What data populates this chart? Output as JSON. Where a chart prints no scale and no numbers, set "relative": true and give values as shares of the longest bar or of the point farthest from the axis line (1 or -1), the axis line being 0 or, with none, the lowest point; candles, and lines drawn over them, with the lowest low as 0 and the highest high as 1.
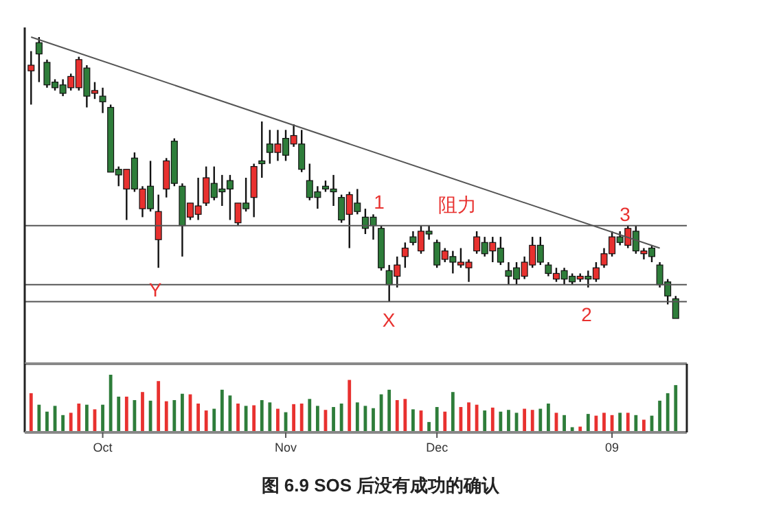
{
  "chart_data": [
    {
      "type": "candlestick",
      "relative": true,
      "tick_labels": false,
      "categories": [
        null,
        null,
        null,
        null,
        null,
        null,
        null,
        null,
        null,
        null,
        null,
        null,
        null,
        null,
        null,
        null,
        null,
        null,
        null,
        null,
        null,
        null,
        null,
        null,
        null,
        null,
        null,
        null,
        null,
        null,
        null,
        null,
        null,
        null,
        null,
        null,
        null,
        null,
        null,
        null,
        null,
        null,
        null,
        null,
        null,
        null,
        null,
        null,
        null,
        null,
        null,
        null,
        null,
        null,
        null,
        null,
        null,
        null,
        null,
        null,
        null,
        null,
        null,
        null,
        null,
        null,
        null,
        null,
        null,
        null,
        null,
        null,
        null,
        null,
        null,
        null,
        null,
        null,
        null,
        null,
        null,
        null
      ],
      "ohlc": [
        [
          0.88,
          0.95,
          0.76,
          0.9
        ],
        [
          0.98,
          1.0,
          0.84,
          0.94
        ],
        [
          0.91,
          0.92,
          0.82,
          0.83
        ],
        [
          0.84,
          0.85,
          0.81,
          0.82
        ],
        [
          0.83,
          0.85,
          0.79,
          0.8
        ],
        [
          0.82,
          0.87,
          0.81,
          0.86
        ],
        [
          0.82,
          0.93,
          0.81,
          0.92
        ],
        [
          0.89,
          0.9,
          0.75,
          0.79
        ],
        [
          0.8,
          0.84,
          0.78,
          0.81
        ],
        [
          0.79,
          0.82,
          0.73,
          0.77
        ],
        [
          0.75,
          0.76,
          0.52,
          0.52
        ],
        [
          0.53,
          0.54,
          0.47,
          0.51
        ],
        [
          0.46,
          0.53,
          0.35,
          0.53
        ],
        [
          0.57,
          0.59,
          0.45,
          0.46
        ],
        [
          0.39,
          0.47,
          0.36,
          0.46
        ],
        [
          0.47,
          0.56,
          0.38,
          0.39
        ],
        [
          0.28,
          0.44,
          0.18,
          0.38
        ],
        [
          0.46,
          0.57,
          0.43,
          0.56
        ],
        [
          0.63,
          0.64,
          0.47,
          0.48
        ],
        [
          0.47,
          0.48,
          0.22,
          0.33
        ],
        [
          0.36,
          0.41,
          0.35,
          0.41
        ],
        [
          0.37,
          0.5,
          0.35,
          0.4
        ],
        [
          0.41,
          0.54,
          0.4,
          0.5
        ],
        [
          0.48,
          0.54,
          0.42,
          0.43
        ],
        [
          0.46,
          0.51,
          0.4,
          0.45
        ],
        [
          0.49,
          0.51,
          0.35,
          0.46
        ],
        [
          0.34,
          0.41,
          0.33,
          0.41
        ],
        [
          0.41,
          0.5,
          0.38,
          0.39
        ],
        [
          0.43,
          0.55,
          0.36,
          0.54
        ],
        [
          0.56,
          0.7,
          0.5,
          0.55
        ],
        [
          0.62,
          0.67,
          0.55,
          0.59
        ],
        [
          0.59,
          0.67,
          0.56,
          0.62
        ],
        [
          0.64,
          0.67,
          0.56,
          0.58
        ],
        [
          0.62,
          0.69,
          0.61,
          0.65
        ],
        [
          0.62,
          0.67,
          0.52,
          0.53
        ],
        [
          0.49,
          0.55,
          0.42,
          0.43
        ],
        [
          0.45,
          0.47,
          0.39,
          0.43
        ],
        [
          0.47,
          0.49,
          0.45,
          0.46
        ],
        [
          0.46,
          0.51,
          0.4,
          0.45
        ],
        [
          0.43,
          0.44,
          0.34,
          0.35
        ],
        [
          0.37,
          0.45,
          0.25,
          0.44
        ],
        [
          0.41,
          0.46,
          0.37,
          0.38
        ],
        [
          0.36,
          0.39,
          0.3,
          0.32
        ],
        [
          0.36,
          0.37,
          0.28,
          0.33
        ],
        [
          0.32,
          0.33,
          0.17,
          0.18
        ],
        [
          0.17,
          0.19,
          0.06,
          0.12
        ],
        [
          0.15,
          0.22,
          0.11,
          0.19
        ],
        [
          0.22,
          0.27,
          0.18,
          0.25
        ],
        [
          0.29,
          0.31,
          0.26,
          0.27
        ],
        [
          0.24,
          0.33,
          0.23,
          0.31
        ],
        [
          0.31,
          0.33,
          0.28,
          0.3
        ],
        [
          0.27,
          0.28,
          0.18,
          0.19
        ],
        [
          0.21,
          0.25,
          0.2,
          0.24
        ],
        [
          0.22,
          0.24,
          0.16,
          0.2
        ],
        [
          0.19,
          0.25,
          0.18,
          0.2
        ],
        [
          0.18,
          0.21,
          0.13,
          0.2
        ],
        [
          0.24,
          0.31,
          0.23,
          0.29
        ],
        [
          0.27,
          0.29,
          0.22,
          0.23
        ],
        [
          0.24,
          0.29,
          0.2,
          0.27
        ],
        [
          0.25,
          0.29,
          0.19,
          0.2
        ],
        [
          0.17,
          0.2,
          0.12,
          0.15
        ],
        [
          0.18,
          0.2,
          0.12,
          0.14
        ],
        [
          0.15,
          0.22,
          0.14,
          0.2
        ],
        [
          0.19,
          0.29,
          0.18,
          0.26
        ],
        [
          0.26,
          0.29,
          0.19,
          0.2
        ],
        [
          0.19,
          0.2,
          0.15,
          0.16
        ],
        [
          0.14,
          0.18,
          0.13,
          0.16
        ],
        [
          0.17,
          0.18,
          0.12,
          0.14
        ],
        [
          0.15,
          0.16,
          0.12,
          0.13
        ],
        [
          0.14,
          0.16,
          0.13,
          0.15
        ],
        [
          0.15,
          0.17,
          0.11,
          0.14
        ],
        [
          0.14,
          0.2,
          0.13,
          0.18
        ],
        [
          0.19,
          0.25,
          0.18,
          0.23
        ],
        [
          0.23,
          0.31,
          0.22,
          0.29
        ],
        [
          0.29,
          0.31,
          0.26,
          0.27
        ],
        [
          0.26,
          0.33,
          0.25,
          0.32
        ],
        [
          0.31,
          0.33,
          0.23,
          0.24
        ],
        [
          0.23,
          0.25,
          0.21,
          0.24
        ],
        [
          0.25,
          0.26,
          0.2,
          0.22
        ],
        [
          0.19,
          0.2,
          0.11,
          0.12
        ],
        [
          0.13,
          0.14,
          0.05,
          0.08
        ],
        [
          0.07,
          0.08,
          0.0,
          0.0
        ]
      ],
      "series": [
        {
          "type": "line",
          "values": [
            1.0,
            null,
            null,
            null,
            null,
            null,
            null,
            null,
            null,
            null,
            null,
            null,
            null,
            null,
            null,
            null,
            null,
            null,
            null,
            null,
            null,
            null,
            null,
            null,
            null,
            null,
            null,
            null,
            null,
            null,
            null,
            null,
            null,
            null,
            null,
            null,
            null,
            null,
            null,
            null,
            null,
            null,
            null,
            null,
            null,
            null,
            null,
            null,
            null,
            null,
            null,
            null,
            null,
            null,
            null,
            null,
            null,
            null,
            null,
            null,
            null,
            null,
            null,
            null,
            null,
            null,
            null,
            null,
            null,
            null,
            null,
            null,
            null,
            null,
            null,
            null,
            null,
            null,
            null,
            0.25,
            null,
            null
          ],
          "color": "#555555"
        }
      ],
      "ref_lines": [
        {
          "axis": "y",
          "value": 0.33,
          "color": "#555555"
        },
        {
          "axis": "y",
          "value": 0.12,
          "color": "#555555"
        },
        {
          "axis": "y",
          "value": 0.06,
          "color": "#555555"
        }
      ],
      "annotations": [
        "Y",
        "X",
        "1",
        "阻力",
        "3",
        "2"
      ]
    },
    {
      "type": "bar",
      "relative": true,
      "tick_labels": "x",
      "categories": [
        null,
        null,
        null,
        null,
        null,
        null,
        null,
        null,
        null,
        "Oct",
        null,
        null,
        null,
        null,
        null,
        null,
        null,
        null,
        null,
        null,
        null,
        null,
        null,
        null,
        null,
        null,
        null,
        null,
        null,
        null,
        null,
        null,
        "Nov",
        null,
        null,
        null,
        null,
        null,
        null,
        null,
        null,
        null,
        null,
        null,
        null,
        null,
        null,
        null,
        null,
        null,
        null,
        "Dec",
        null,
        null,
        null,
        null,
        null,
        null,
        null,
        null,
        null,
        null,
        null,
        null,
        null,
        null,
        null,
        null,
        null,
        null,
        null,
        null,
        null,
        "09",
        null,
        null,
        null,
        null,
        null,
        null,
        null,
        null
      ],
      "values": [
        0.68,
        0.48,
        0.36,
        0.46,
        0.3,
        0.34,
        0.5,
        0.48,
        0.4,
        0.48,
        1.0,
        0.62,
        0.62,
        0.56,
        0.7,
        0.55,
        0.89,
        0.54,
        0.56,
        0.67,
        0.66,
        0.5,
        0.38,
        0.41,
        0.74,
        0.64,
        0.5,
        0.46,
        0.47,
        0.56,
        0.52,
        0.41,
        0.35,
        0.49,
        0.5,
        0.58,
        0.46,
        0.39,
        0.44,
        0.5,
        0.91,
        0.52,
        0.46,
        0.42,
        0.66,
        0.74,
        0.56,
        0.58,
        0.4,
        0.38,
        0.18,
        0.44,
        0.36,
        0.7,
        0.44,
        0.52,
        0.48,
        0.38,
        0.43,
        0.36,
        0.39,
        0.34,
        0.41,
        0.39,
        0.41,
        0.5,
        0.34,
        0.3,
        0.09,
        0.1,
        0.32,
        0.29,
        0.34,
        0.3,
        0.34,
        0.34,
        0.3,
        0.22,
        0.29,
        0.55,
        0.68,
        0.82
      ],
      "colors": [
        "#e8312f",
        "#2e7d3a",
        "#2e7d3a",
        "#2e7d3a",
        "#2e7d3a",
        "#e8312f",
        "#e8312f",
        "#2e7d3a",
        "#e8312f",
        "#2e7d3a",
        "#2e7d3a",
        "#2e7d3a",
        "#e8312f",
        "#2e7d3a",
        "#e8312f",
        "#2e7d3a",
        "#e8312f",
        "#e8312f",
        "#2e7d3a",
        "#2e7d3a",
        "#e8312f",
        "#e8312f",
        "#e8312f",
        "#2e7d3a",
        "#2e7d3a",
        "#2e7d3a",
        "#e8312f",
        "#2e7d3a",
        "#e8312f",
        "#2e7d3a",
        "#2e7d3a",
        "#e8312f",
        "#2e7d3a",
        "#e8312f",
        "#e8312f",
        "#2e7d3a",
        "#2e7d3a",
        "#e8312f",
        "#2e7d3a",
        "#2e7d3a",
        "#e8312f",
        "#2e7d3a",
        "#2e7d3a",
        "#2e7d3a",
        "#2e7d3a",
        "#2e7d3a",
        "#e8312f",
        "#e8312f",
        "#2e7d3a",
        "#e8312f",
        "#2e7d3a",
        "#2e7d3a",
        "#e8312f",
        "#2e7d3a",
        "#e8312f",
        "#e8312f",
        "#e8312f",
        "#2e7d3a",
        "#e8312f",
        "#2e7d3a",
        "#2e7d3a",
        "#2e7d3a",
        "#e8312f",
        "#e8312f",
        "#2e7d3a",
        "#2e7d3a",
        "#e8312f",
        "#2e7d3a",
        "#2e7d3a",
        "#e8312f",
        "#2e7d3a",
        "#e8312f",
        "#e8312f",
        "#e8312f",
        "#2e7d3a",
        "#e8312f",
        "#2e7d3a",
        "#e8312f",
        "#2e7d3a",
        "#2e7d3a",
        "#2e7d3a",
        "#2e7d3a"
      ],
      "annotations": [
        "图 6.9 SOS 后没有成功的确认"
      ]
    }
  ]
}
